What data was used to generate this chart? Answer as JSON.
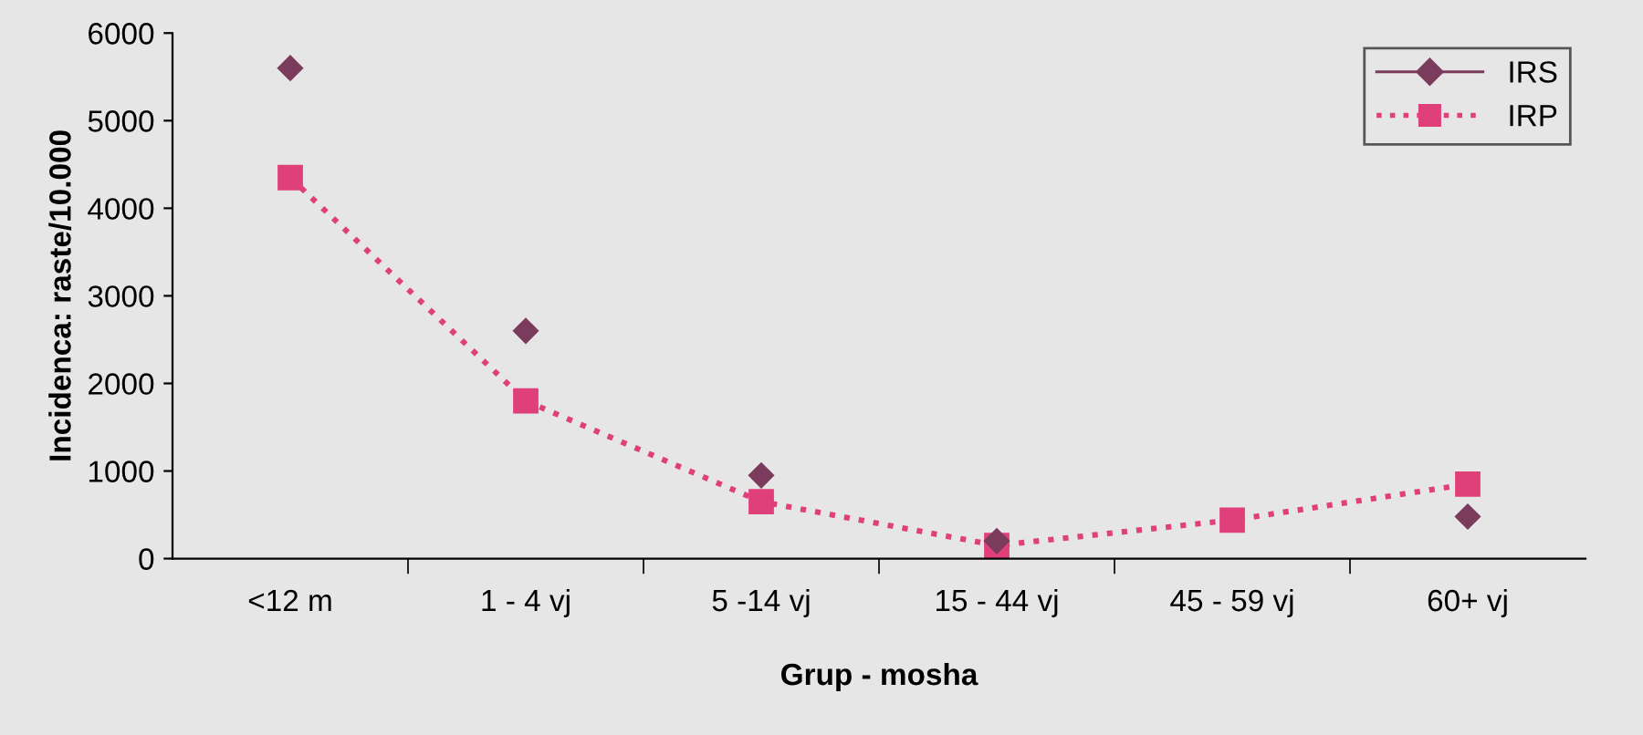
{
  "chart_data": {
    "type": "line",
    "xlabel": "Grup - mosha",
    "ylabel": "Incidenca: raste/10.000",
    "categories": [
      "<12 m",
      "1 - 4 vj",
      "5 -14 vj",
      "15 - 44 vj",
      "45 - 59 vj",
      "60+ vj"
    ],
    "series": [
      {
        "name": "IRS",
        "type": "scatter",
        "marker": "diamond",
        "color": "#7a3b5c",
        "values": [
          5600,
          2600,
          950,
          200,
          null,
          480
        ]
      },
      {
        "name": "IRP",
        "marker": "square",
        "line_style": "dotted",
        "color": "#e0407a",
        "values": [
          4350,
          1800,
          650,
          150,
          440,
          850
        ]
      }
    ],
    "ylim": [
      0,
      6000
    ],
    "yticks": [
      0,
      1000,
      2000,
      3000,
      4000,
      5000,
      6000
    ],
    "grid": false,
    "legend": "top right"
  }
}
